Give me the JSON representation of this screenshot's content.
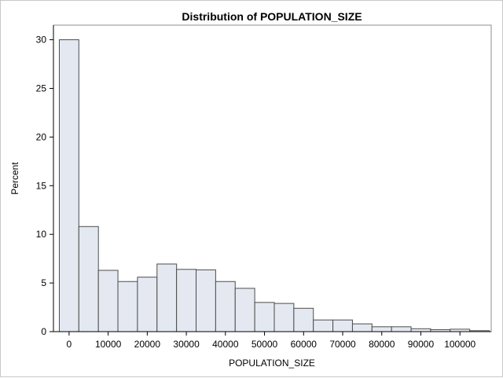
{
  "chart_data": {
    "type": "bar",
    "title": "Distribution of POPULATION_SIZE",
    "xlabel": "POPULATION_SIZE",
    "ylabel": "Percent",
    "bin_width": 5000,
    "bin_midpoints": [
      0,
      5000,
      10000,
      15000,
      20000,
      25000,
      30000,
      35000,
      40000,
      45000,
      50000,
      55000,
      60000,
      65000,
      70000,
      75000,
      80000,
      85000,
      90000,
      95000,
      100000,
      105000
    ],
    "values": [
      30.0,
      10.8,
      6.3,
      5.15,
      5.6,
      6.95,
      6.4,
      6.35,
      5.15,
      4.45,
      3.0,
      2.9,
      2.4,
      1.2,
      1.2,
      0.8,
      0.5,
      0.5,
      0.3,
      0.2,
      0.25,
      0.1
    ],
    "xlim": [
      -4000,
      108000
    ],
    "ylim": [
      0,
      31.5
    ],
    "x_ticks": [
      0,
      10000,
      20000,
      30000,
      40000,
      50000,
      60000,
      70000,
      80000,
      90000,
      100000
    ],
    "x_tick_labels": [
      "0",
      "10000",
      "20000",
      "30000",
      "40000",
      "50000",
      "60000",
      "70000",
      "80000",
      "90000",
      "100000"
    ],
    "y_ticks": [
      0,
      5,
      10,
      15,
      20,
      25,
      30
    ],
    "y_tick_labels": [
      "0",
      "5",
      "10",
      "15",
      "20",
      "25",
      "30"
    ],
    "grid": false,
    "legend": "none",
    "bar_fill": "#e4e8f1",
    "bar_stroke": "#4d4d4d"
  }
}
